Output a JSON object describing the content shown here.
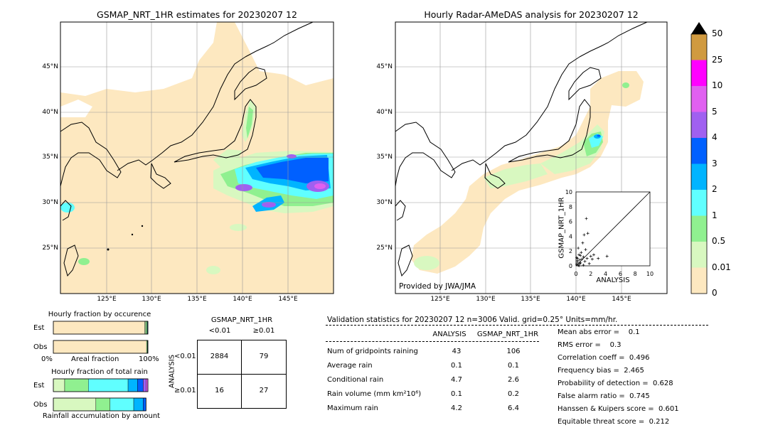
{
  "map_left": {
    "title": "GSMAP_NRT_1HR estimates for 20230207 12",
    "lat_labels": [
      "45°N",
      "40°N",
      "35°N",
      "30°N",
      "25°N"
    ],
    "lon_labels": [
      "125°E",
      "130°E",
      "135°E",
      "140°E",
      "145°E"
    ]
  },
  "map_right": {
    "title": "Hourly Radar-AMeDAS analysis for 20230207 12",
    "lat_labels": [
      "45°N",
      "40°N",
      "35°N",
      "30°N",
      "25°N"
    ],
    "lon_labels": [
      "125°E",
      "130°E",
      "135°E",
      "140°E",
      "145°E"
    ],
    "credit": "Provided by JWA/JMA"
  },
  "colorbar": {
    "labels": [
      "50",
      "25",
      "10",
      "5",
      "4",
      "3",
      "2",
      "1",
      "0.5",
      "0.01",
      "0"
    ],
    "colors": [
      "#d09a40",
      "#ff00ff",
      "#e060f0",
      "#a060f0",
      "#0060ff",
      "#00b4ff",
      "#60ffff",
      "#90f090",
      "#d8f8c0",
      "#fde8c0"
    ]
  },
  "occurrence": {
    "title": "Hourly fraction by occurence",
    "rows": [
      "Est",
      "Obs"
    ],
    "axis_left": "0%",
    "axis_mid": "Areal fraction",
    "axis_right": "100%"
  },
  "total_rain": {
    "title": "Hourly fraction of total rain",
    "rows": [
      "Est",
      "Obs"
    ],
    "footer": "Rainfall accumulation by amount"
  },
  "contingency": {
    "title": "GSMAP_NRT_1HR",
    "col_labels": [
      "<0.01",
      "≥0.01"
    ],
    "row_title": "ANALYSIS",
    "row_labels": [
      "<0.01",
      "≥0.01"
    ],
    "cells": [
      [
        "2884",
        "79"
      ],
      [
        "16",
        "27"
      ]
    ]
  },
  "stats": {
    "header": "Validation statistics for 20230207 12  n=3006 Valid. grid=0.25° Units=mm/hr.",
    "col1": "ANALYSIS",
    "col2": "GSMAP_NRT_1HR",
    "rows": [
      {
        "label": "Num of gridpoints raining",
        "a": "43",
        "b": "106"
      },
      {
        "label": "Average rain",
        "a": "0.1",
        "b": "0.1"
      },
      {
        "label": "Conditional rain",
        "a": "4.7",
        "b": "2.6"
      },
      {
        "label": "Rain volume (mm km²10⁶)",
        "a": "0.1",
        "b": "0.2"
      },
      {
        "label": "Maximum rain",
        "a": "4.2",
        "b": "6.4"
      }
    ],
    "scores": [
      "Mean abs error =    0.1",
      "RMS error =    0.3",
      "Correlation coeff =  0.496",
      "Frequency bias =  2.465",
      "Probability of detection =  0.628",
      "False alarm ratio =  0.745",
      "Hanssen & Kuipers score =  0.601",
      "Equitable threat score =  0.212"
    ]
  },
  "chart_data": [
    {
      "type": "scatter",
      "xlabel": "ANALYSIS",
      "ylabel": "GSMAP_NRT_1HR",
      "xlim": [
        0,
        10
      ],
      "ylim": [
        0,
        10
      ],
      "ticks": [
        "0",
        "2",
        "4",
        "6",
        "8",
        "10"
      ],
      "points": [
        [
          0.1,
          0.2
        ],
        [
          0.2,
          0.5
        ],
        [
          0.3,
          0.1
        ],
        [
          0.5,
          0.8
        ],
        [
          0.2,
          1.0
        ],
        [
          0.4,
          1.5
        ],
        [
          0.6,
          0.4
        ],
        [
          0.8,
          0.9
        ],
        [
          1.0,
          1.2
        ],
        [
          1.2,
          0.6
        ],
        [
          1.5,
          1.0
        ],
        [
          0.3,
          2.4
        ],
        [
          0.9,
          3.1
        ],
        [
          1.1,
          4.2
        ],
        [
          1.4,
          6.4
        ],
        [
          1.6,
          4.4
        ],
        [
          0.7,
          1.8
        ],
        [
          2.0,
          1.3
        ],
        [
          2.4,
          1.5
        ],
        [
          3.0,
          1.0
        ],
        [
          4.2,
          1.3
        ],
        [
          1.8,
          0.3
        ],
        [
          0.1,
          1.1
        ],
        [
          0.5,
          0.3
        ],
        [
          1.3,
          2.2
        ],
        [
          0.2,
          0.7
        ],
        [
          0.6,
          1.4
        ],
        [
          2.2,
          0.9
        ],
        [
          1.0,
          0.1
        ],
        [
          0.4,
          0.0
        ]
      ]
    },
    {
      "type": "bar",
      "title": "Hourly fraction by occurence",
      "categories": [
        "Est",
        "Obs"
      ],
      "series": [
        {
          "values": [
            0.965,
            0.986
          ]
        },
        {
          "values": [
            0.012,
            0.0
          ]
        },
        {
          "values": [
            0.013,
            0.008
          ]
        },
        {
          "values": [
            0.006,
            0.004
          ]
        },
        {
          "values": [
            0.004,
            0.002
          ]
        }
      ]
    },
    {
      "type": "bar",
      "title": "Hourly fraction of total rain",
      "categories": [
        "Est",
        "Obs"
      ],
      "series": [
        {
          "values": [
            0.12,
            0.45
          ]
        },
        {
          "values": [
            0.25,
            0.15
          ]
        },
        {
          "values": [
            0.42,
            0.25
          ]
        },
        {
          "values": [
            0.1,
            0.1
          ]
        },
        {
          "values": [
            0.06,
            0.03
          ]
        },
        {
          "values": [
            0.03,
            0.0
          ]
        },
        {
          "values": [
            0.02,
            0.0
          ]
        }
      ]
    }
  ]
}
